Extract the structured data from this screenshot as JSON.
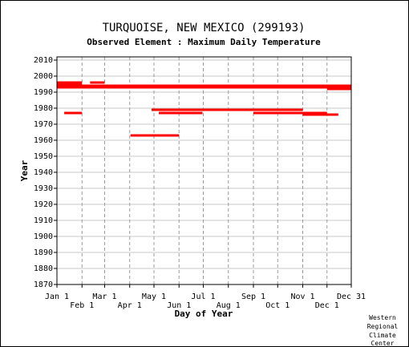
{
  "chart_data": {
    "type": "bar",
    "title": "TURQUOISE, NEW MEXICO   (299193)",
    "subtitle": "Observed Element : Maximum Daily Temperature",
    "xlabel": "Day of Year",
    "ylabel": "Year",
    "xlim": [
      1,
      365
    ],
    "ylim": [
      1870,
      2010
    ],
    "y_ticks": [
      1870,
      1880,
      1890,
      1900,
      1910,
      1920,
      1930,
      1940,
      1950,
      1960,
      1970,
      1980,
      1990,
      2000,
      2010
    ],
    "x_ticks_top": [
      {
        "label": "Jan 1",
        "day": 1
      },
      {
        "label": "Mar 1",
        "day": 60
      },
      {
        "label": "May 1",
        "day": 121
      },
      {
        "label": "Jul 1",
        "day": 182
      },
      {
        "label": "Sep 1",
        "day": 244
      },
      {
        "label": "Nov 1",
        "day": 305
      },
      {
        "label": "Dec 31",
        "day": 365
      }
    ],
    "x_ticks_bottom": [
      {
        "label": "Feb 1",
        "day": 32
      },
      {
        "label": "Apr 1",
        "day": 91
      },
      {
        "label": "Jun 1",
        "day": 152
      },
      {
        "label": "Aug 1",
        "day": 213
      },
      {
        "label": "Oct 1",
        "day": 274
      },
      {
        "label": "Dec 1",
        "day": 335
      }
    ],
    "grid_x_days": [
      32,
      60,
      91,
      121,
      152,
      182,
      213,
      244,
      274,
      305,
      335
    ],
    "grid_y": true,
    "bar_color": "#ff0000",
    "observation_segments": [
      {
        "year": 1996,
        "start_day": 1,
        "end_day": 32
      },
      {
        "year": 1995,
        "start_day": 1,
        "end_day": 32
      },
      {
        "year": 1994,
        "start_day": 1,
        "end_day": 365
      },
      {
        "year": 1993,
        "start_day": 1,
        "end_day": 365
      },
      {
        "year": 1996,
        "start_day": 42,
        "end_day": 60
      },
      {
        "year": 1993,
        "start_day": 335,
        "end_day": 365
      },
      {
        "year": 1992,
        "start_day": 335,
        "end_day": 365
      },
      {
        "year": 1979,
        "start_day": 118,
        "end_day": 305
      },
      {
        "year": 1977,
        "start_day": 10,
        "end_day": 32
      },
      {
        "year": 1977,
        "start_day": 127,
        "end_day": 181
      },
      {
        "year": 1977,
        "start_day": 244,
        "end_day": 335
      },
      {
        "year": 1976,
        "start_day": 305,
        "end_day": 335
      },
      {
        "year": 1976,
        "start_day": 335,
        "end_day": 349
      },
      {
        "year": 1963,
        "start_day": 92,
        "end_day": 152
      }
    ]
  },
  "credit": [
    "Western",
    "Regional",
    "Climate",
    "Center"
  ]
}
